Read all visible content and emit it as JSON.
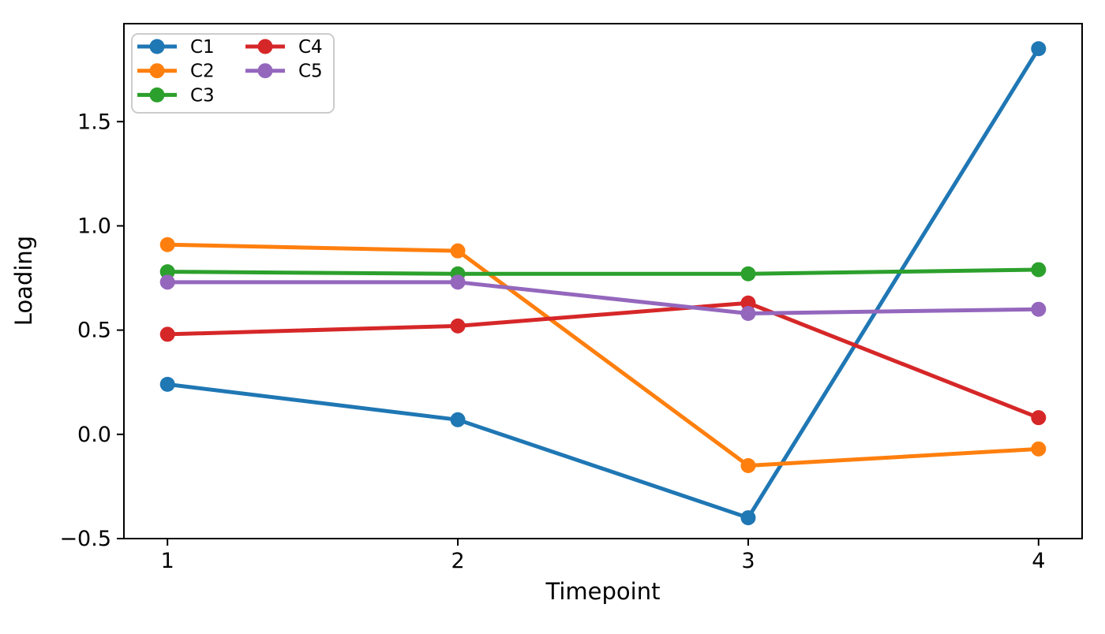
{
  "figure": {
    "background": "#ffffff",
    "spine_color": "#000000",
    "tick_color": "#000000",
    "legend_border_color": "#cccccc",
    "legend_background": "#ffffff"
  },
  "chart_data": {
    "type": "line",
    "title": "",
    "xlabel": "Timepoint",
    "ylabel": "Loading",
    "x": [
      1,
      2,
      3,
      4
    ],
    "series": [
      {
        "name": "C1",
        "color": "#1f77b4",
        "values": [
          0.24,
          0.07,
          -0.4,
          1.85
        ]
      },
      {
        "name": "C2",
        "color": "#ff7f0e",
        "values": [
          0.91,
          0.88,
          -0.15,
          -0.07
        ]
      },
      {
        "name": "C3",
        "color": "#2ca02c",
        "values": [
          0.78,
          0.77,
          0.77,
          0.79
        ]
      },
      {
        "name": "C4",
        "color": "#d62728",
        "values": [
          0.48,
          0.52,
          0.63,
          0.08
        ]
      },
      {
        "name": "C5",
        "color": "#9467bd",
        "values": [
          0.73,
          0.73,
          0.58,
          0.6
        ]
      }
    ],
    "marker": "o",
    "xticks": [
      1,
      2,
      3,
      4
    ],
    "yticks": [
      -0.5,
      0.0,
      0.5,
      1.0,
      1.5
    ],
    "xlim": [
      0.85,
      4.15
    ],
    "ylim": [
      -0.5,
      1.97
    ],
    "grid": false,
    "legend": {
      "position": "upper left",
      "columns": 2,
      "labels": [
        "C1",
        "C2",
        "C3",
        "C4",
        "C5"
      ]
    }
  }
}
